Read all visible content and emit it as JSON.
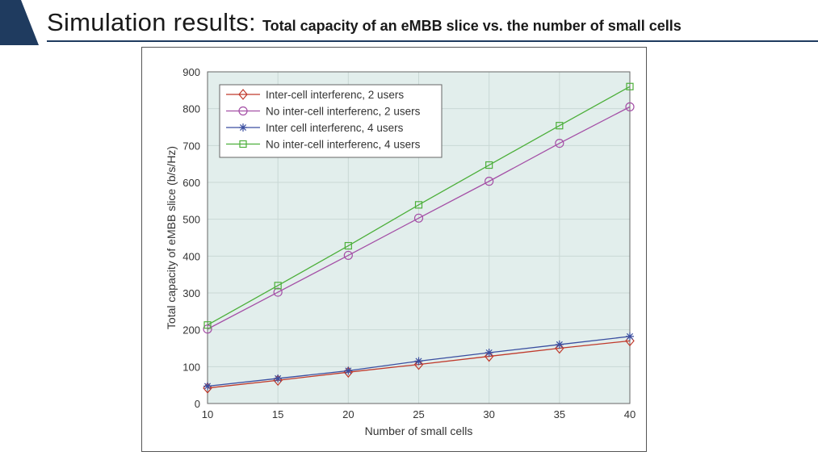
{
  "header": {
    "title_main": "Simulation results:",
    "title_sub": "Total capacity of an eMBB slice vs. the number of small cells"
  },
  "colors": {
    "brand": "#1f3b5f",
    "plot_bg": "#e2eeec",
    "grid": "#c9d8d5"
  },
  "chart_data": {
    "type": "line",
    "title": "",
    "xlabel": "Number of small cells",
    "ylabel": "Total capacity of eMBB slice (b/s/Hz)",
    "x": [
      10,
      15,
      20,
      25,
      30,
      35,
      40
    ],
    "xlim": [
      10,
      40
    ],
    "ylim": [
      0,
      900
    ],
    "xticks": [
      10,
      15,
      20,
      25,
      30,
      35,
      40
    ],
    "yticks": [
      0,
      100,
      200,
      300,
      400,
      500,
      600,
      700,
      800,
      900
    ],
    "grid": true,
    "legend_position": "top-left",
    "series": [
      {
        "name": "Inter-cell interferenc, 2 users",
        "color": "#c0392b",
        "marker": "diamond",
        "values": [
          42,
          63,
          85,
          106,
          128,
          150,
          170
        ]
      },
      {
        "name": "No inter-cell interferenc, 2 users",
        "color": "#a44fa6",
        "marker": "circle",
        "values": [
          202,
          302,
          402,
          503,
          603,
          706,
          805
        ]
      },
      {
        "name": "Inter cell interferenc, 4 users",
        "color": "#3a4ea0",
        "marker": "star",
        "values": [
          47,
          68,
          89,
          115,
          138,
          160,
          182
        ]
      },
      {
        "name": "No inter-cell interferenc, 4 users",
        "color": "#4caf3a",
        "marker": "square",
        "values": [
          213,
          320,
          428,
          539,
          647,
          754,
          860
        ]
      }
    ]
  }
}
